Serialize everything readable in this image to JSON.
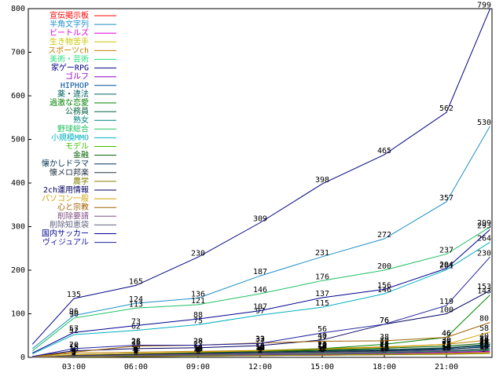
{
  "chart_data": {
    "type": "line",
    "x": [
      1,
      3,
      6,
      9,
      12,
      15,
      18,
      21,
      23.1
    ],
    "xlim": [
      0.8,
      23.2
    ],
    "xticks": [
      {
        "value": 3,
        "label": "03:00"
      },
      {
        "value": 6,
        "label": "06:00"
      },
      {
        "value": 9,
        "label": "09:00"
      },
      {
        "value": 12,
        "label": "12:00"
      },
      {
        "value": 15,
        "label": "15:00"
      },
      {
        "value": 18,
        "label": "18:00"
      },
      {
        "value": 21,
        "label": "21:00"
      }
    ],
    "ylim": [
      0,
      800
    ],
    "yticks": [
      0,
      100,
      200,
      300,
      400,
      500,
      600,
      700,
      800
    ],
    "series": [
      {
        "name": "宣伝掲示板",
        "color": "#ff0000",
        "values": [
          0,
          1,
          2,
          3,
          4,
          5,
          6,
          8,
          10
        ]
      },
      {
        "name": "半角文字列",
        "color": "#1e8fc8",
        "values": [
          20,
          96,
          124,
          136,
          187,
          231,
          272,
          357,
          530
        ]
      },
      {
        "name": "ビートルズ",
        "color": "#e000e0",
        "values": [
          0,
          2,
          3,
          4,
          5,
          6,
          8,
          10,
          12
        ]
      },
      {
        "name": "生き物苦手",
        "color": "#c8c800",
        "values": [
          0,
          1,
          2,
          3,
          4,
          6,
          7,
          9,
          11
        ]
      },
      {
        "name": "スポーツch",
        "color": "#c08000",
        "values": [
          2,
          10,
          12,
          14,
          16,
          20,
          24,
          30,
          40
        ]
      },
      {
        "name": "美術・芸術",
        "color": "#30e080",
        "values": [
          0,
          3,
          5,
          6,
          8,
          10,
          12,
          15,
          20
        ]
      },
      {
        "name": "家ゲーRPG",
        "color": "#000080",
        "values": [
          30,
          135,
          165,
          230,
          309,
          398,
          465,
          562,
          799
        ]
      },
      {
        "name": "ゴルフ",
        "color": "#9000c0",
        "values": [
          0,
          2,
          3,
          5,
          6,
          7,
          9,
          11,
          14
        ]
      },
      {
        "name": "HIPHOP",
        "color": "#00509c",
        "values": [
          1,
          4,
          6,
          8,
          10,
          12,
          14,
          18,
          26
        ]
      },
      {
        "name": "薬・違法",
        "color": "#006060",
        "values": [
          0,
          3,
          5,
          6,
          8,
          9,
          11,
          14,
          18
        ]
      },
      {
        "name": "過激な恋愛",
        "color": "#008000",
        "values": [
          0,
          3,
          8,
          10,
          15,
          20,
          30,
          46,
          143
        ]
      },
      {
        "name": "公務員",
        "color": "#006040",
        "values": [
          1,
          5,
          8,
          10,
          12,
          16,
          18,
          22,
          30
        ]
      },
      {
        "name": "熟女",
        "color": "#008080",
        "values": [
          0,
          4,
          6,
          9,
          11,
          14,
          17,
          21,
          28
        ]
      },
      {
        "name": "野球総合",
        "color": "#20c060",
        "values": [
          15,
          90,
          113,
          121,
          146,
          176,
          200,
          237,
          299
        ]
      },
      {
        "name": "小規模MMO",
        "color": "#00b0c0",
        "values": [
          8,
          52,
          62,
          75,
          97,
          115,
          146,
          201,
          264
        ]
      },
      {
        "name": "モデル",
        "color": "#40c000",
        "values": [
          0,
          2,
          4,
          5,
          7,
          8,
          10,
          13,
          17
        ]
      },
      {
        "name": "金融",
        "color": "#006000",
        "values": [
          1,
          6,
          9,
          11,
          14,
          17,
          21,
          26,
          33
        ]
      },
      {
        "name": "懐かしドラマ",
        "color": "#003050",
        "values": [
          0,
          3,
          5,
          7,
          9,
          12,
          15,
          19,
          24
        ]
      },
      {
        "name": "懐メロ邦楽",
        "color": "#203040",
        "values": [
          1,
          5,
          7,
          9,
          12,
          14,
          17,
          21,
          29
        ]
      },
      {
        "name": "農学",
        "color": "#808000",
        "values": [
          0,
          1,
          2,
          3,
          4,
          5,
          6,
          7,
          9
        ]
      },
      {
        "name": "2ch運用情報",
        "color": "#000060",
        "values": [
          2,
          15,
          20,
          22,
          27,
          40,
          76,
          100,
          153
        ]
      },
      {
        "name": "パソコン一般",
        "color": "#d0a000",
        "values": [
          1,
          6,
          9,
          12,
          15,
          19,
          23,
          30,
          58
        ]
      },
      {
        "name": "心と宗教",
        "color": "#a06000",
        "values": [
          2,
          12,
          26,
          28,
          33,
          37,
          38,
          46,
          80
        ]
      },
      {
        "name": "削除要請",
        "color": "#805080",
        "values": [
          0,
          3,
          5,
          7,
          9,
          11,
          13,
          16,
          21
        ]
      },
      {
        "name": "削除知恵袋",
        "color": "#606080",
        "values": [
          0,
          2,
          4,
          5,
          7,
          9,
          10,
          13,
          16
        ]
      },
      {
        "name": "国内サッカー",
        "color": "#000090",
        "values": [
          10,
          57,
          73,
          88,
          107,
          137,
          156,
          204,
          293
        ]
      },
      {
        "name": "ヴィジュアル",
        "color": "#2020a0",
        "values": [
          2,
          20,
          28,
          28,
          32,
          56,
          76,
          119,
          230
        ]
      }
    ]
  }
}
